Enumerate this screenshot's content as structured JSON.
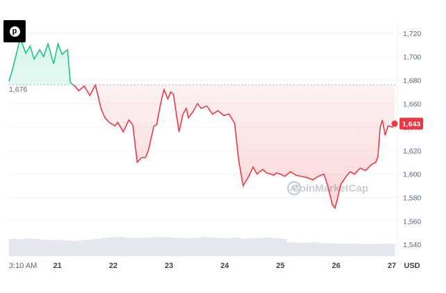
{
  "share": {
    "icon": "pinterest-icon",
    "glyph": "p"
  },
  "chart_data": {
    "type": "area",
    "currency_label": "USD",
    "baseline_label": "1,676",
    "current_label": "1,643",
    "watermark": "CoinMarketCap",
    "colors": {
      "up": "#16c784",
      "down": "#ea3943"
    },
    "ylim": [
      1530,
      1730
    ],
    "baseline": 1676,
    "current": 1643,
    "y_ticks": [
      {
        "value": 1720,
        "label": "1,720"
      },
      {
        "value": 1700,
        "label": "1,700"
      },
      {
        "value": 1680,
        "label": "1,680"
      },
      {
        "value": 1660,
        "label": "1,660"
      },
      {
        "value": 1640,
        "label": "1,640"
      },
      {
        "value": 1620,
        "label": "1,620"
      },
      {
        "value": 1600,
        "label": "1,600"
      },
      {
        "value": 1580,
        "label": "1,580"
      },
      {
        "value": 1560,
        "label": "1,560"
      },
      {
        "value": 1540,
        "label": "1,540"
      }
    ],
    "x_ticks": [
      {
        "value": 0,
        "label": "3:10 AM",
        "bold": false
      },
      {
        "value": 0.87,
        "label": "21",
        "bold": true
      },
      {
        "value": 1.87,
        "label": "22",
        "bold": true
      },
      {
        "value": 2.87,
        "label": "23",
        "bold": true
      },
      {
        "value": 3.87,
        "label": "24",
        "bold": true
      },
      {
        "value": 4.87,
        "label": "25",
        "bold": true
      },
      {
        "value": 5.87,
        "label": "26",
        "bold": true
      },
      {
        "value": 6.87,
        "label": "27",
        "bold": true
      }
    ],
    "x_range": [
      0,
      6.92
    ],
    "series": [
      {
        "x": [
          0,
          0.05,
          0.12,
          0.2,
          0.3,
          0.38,
          0.45,
          0.55,
          0.62,
          0.7,
          0.8,
          0.88,
          0.95,
          1.05,
          1.1,
          1.18,
          1.25,
          1.35,
          1.45,
          1.55,
          1.65,
          1.72,
          1.8,
          1.9,
          1.95,
          2.05,
          2.15,
          2.22,
          2.3,
          2.38,
          2.45,
          2.5,
          2.6,
          2.65,
          2.72,
          2.78,
          2.85,
          2.9,
          2.95,
          3.05,
          3.12,
          3.18,
          3.22,
          3.3,
          3.38,
          3.45,
          3.55,
          3.65,
          3.75,
          3.85,
          3.95,
          4.05,
          4.12,
          4.2,
          4.3,
          4.38,
          4.45,
          4.55,
          4.62,
          4.7,
          4.75,
          4.8,
          4.87,
          4.95,
          5.05,
          5.15,
          5.25,
          5.35,
          5.45,
          5.55,
          5.65,
          5.72,
          5.8,
          5.85,
          5.9,
          5.95,
          6.05,
          6.12,
          6.2,
          6.3,
          6.4,
          6.5,
          6.58,
          6.62,
          6.66,
          6.7,
          6.75,
          6.8,
          6.88,
          6.92
        ],
        "values": [
          1679,
          1687,
          1700,
          1716,
          1703,
          1709,
          1698,
          1706,
          1700,
          1711,
          1694,
          1711,
          1702,
          1706,
          1678,
          1675,
          1671,
          1675,
          1667,
          1676,
          1656,
          1648,
          1644,
          1641,
          1644,
          1636,
          1646,
          1642,
          1610,
          1614,
          1614,
          1620,
          1641,
          1642,
          1660,
          1672,
          1664,
          1670,
          1668,
          1636,
          1651,
          1656,
          1648,
          1653,
          1660,
          1656,
          1658,
          1651,
          1654,
          1650,
          1651,
          1643,
          1612,
          1590,
          1598,
          1606,
          1600,
          1604,
          1601,
          1600,
          1599,
          1601,
          1600,
          1598,
          1602,
          1599,
          1598,
          1597,
          1595,
          1598,
          1600,
          1590,
          1574,
          1571,
          1580,
          1591,
          1598,
          1602,
          1600,
          1605,
          1603,
          1608,
          1610,
          1615,
          1640,
          1646,
          1633,
          1641,
          1640,
          1643
        ]
      }
    ],
    "volume": [
      0.52,
      0.51,
      0.53,
      0.52,
      0.5,
      0.48,
      0.49,
      0.47,
      0.46,
      0.48,
      0.5,
      0.52,
      0.55,
      0.57,
      0.58,
      0.56,
      0.55,
      0.56,
      0.57,
      0.58,
      0.57,
      0.56,
      0.55,
      0.54,
      0.56,
      0.58,
      0.56,
      0.55,
      0.54,
      0.56,
      0.52,
      0.54,
      0.55,
      0.56,
      0.54,
      0.52,
      0.42,
      0.4,
      0.41,
      0.42,
      0.4,
      0.39,
      0.38,
      0.37,
      0.38,
      0.37,
      0.36,
      0.37,
      0.38,
      0.38
    ]
  }
}
